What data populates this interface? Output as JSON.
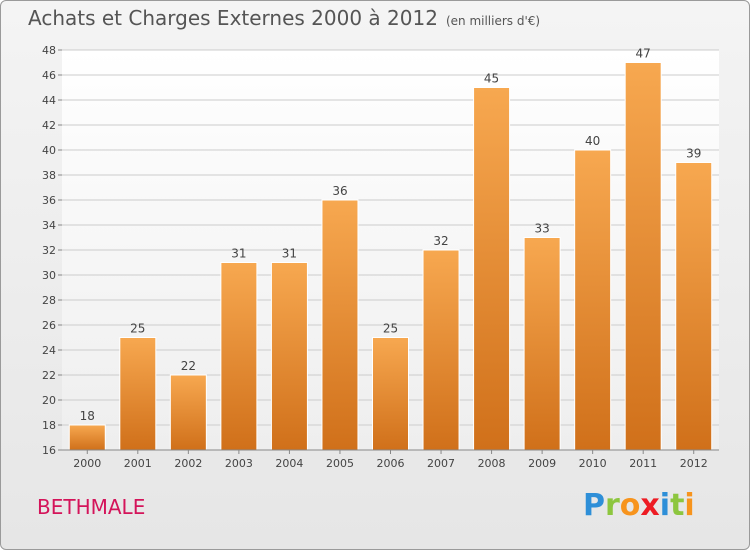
{
  "header": {
    "title": "Achats et Charges Externes 2000 à 2012",
    "unit": "(en milliers d'€)"
  },
  "footer": {
    "commune": "BETHMALE",
    "brand_letters": [
      {
        "ch": "P",
        "color": "#2e8fd8"
      },
      {
        "ch": "r",
        "color": "#8dc63f"
      },
      {
        "ch": "o",
        "color": "#f7941d"
      },
      {
        "ch": "x",
        "color": "#ed1c24"
      },
      {
        "ch": "i",
        "color": "#2e8fd8"
      },
      {
        "ch": "t",
        "color": "#8dc63f"
      },
      {
        "ch": "i",
        "color": "#f7941d"
      }
    ]
  },
  "colors": {
    "bar_top": "#f7a850",
    "bar_bottom": "#d0701a",
    "bar_edge": "#ffffff",
    "grid": "#cccccc",
    "axis_text": "#444444"
  },
  "chart_data": {
    "type": "bar",
    "title": "Achats et Charges Externes 2000 à 2012",
    "subtitle": "(en milliers d'€)",
    "categories": [
      "2000",
      "2001",
      "2002",
      "2003",
      "2004",
      "2005",
      "2006",
      "2007",
      "2008",
      "2009",
      "2010",
      "2011",
      "2012"
    ],
    "values": [
      18,
      25,
      22,
      31,
      31,
      36,
      25,
      32,
      45,
      33,
      40,
      47,
      39
    ],
    "value_labels": [
      "18",
      "25",
      "22",
      "31",
      "31",
      "36",
      "25",
      "32",
      "45",
      "33",
      "40",
      "47",
      "39"
    ],
    "yticks": [
      "16",
      "18",
      "20",
      "22",
      "24",
      "26",
      "28",
      "30",
      "32",
      "34",
      "36",
      "38",
      "40",
      "42",
      "44",
      "46",
      "48"
    ],
    "ylim": [
      16,
      48
    ],
    "grid": true,
    "legend": "none"
  }
}
